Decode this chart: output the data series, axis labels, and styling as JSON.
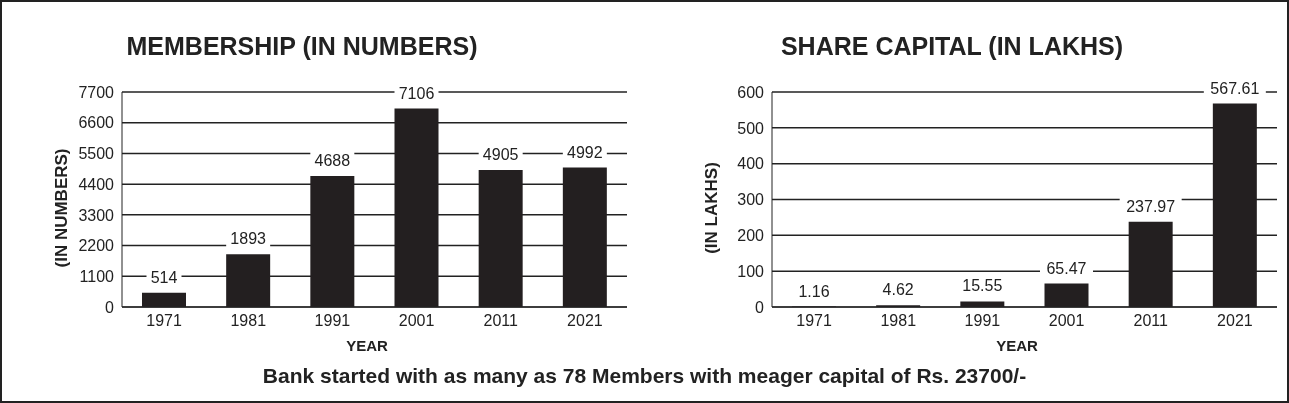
{
  "chart_data": [
    {
      "type": "bar",
      "title": "MEMBERSHIP (IN NUMBERS)",
      "xlabel": "YEAR",
      "ylabel": "(IN NUMBERS)",
      "categories": [
        "1971",
        "1981",
        "1991",
        "2001",
        "2011",
        "2021"
      ],
      "values": [
        514,
        1893,
        4688,
        7106,
        4905,
        4992
      ],
      "color": "#231f20",
      "ylim": [
        0,
        7700
      ],
      "yticks": [
        0,
        1100,
        2200,
        3300,
        4400,
        5500,
        6600,
        7700
      ],
      "grid": "y",
      "data_labels": true,
      "annotations": [
        "Bank started with as many as 78 Members with meager capital of Rs. 23700/-"
      ]
    },
    {
      "type": "bar",
      "title": "SHARE CAPITAL (IN LAKHS)",
      "xlabel": "YEAR",
      "ylabel": "(IN LAKHS)",
      "categories": [
        "1971",
        "1981",
        "1991",
        "2001",
        "2011",
        "2021"
      ],
      "values": [
        1.16,
        4.62,
        15.55,
        65.47,
        237.97,
        567.61
      ],
      "color": "#231f20",
      "ylim": [
        0,
        600
      ],
      "yticks": [
        0,
        100,
        200,
        300,
        400,
        500,
        600
      ],
      "grid": "y",
      "data_labels": true
    }
  ]
}
